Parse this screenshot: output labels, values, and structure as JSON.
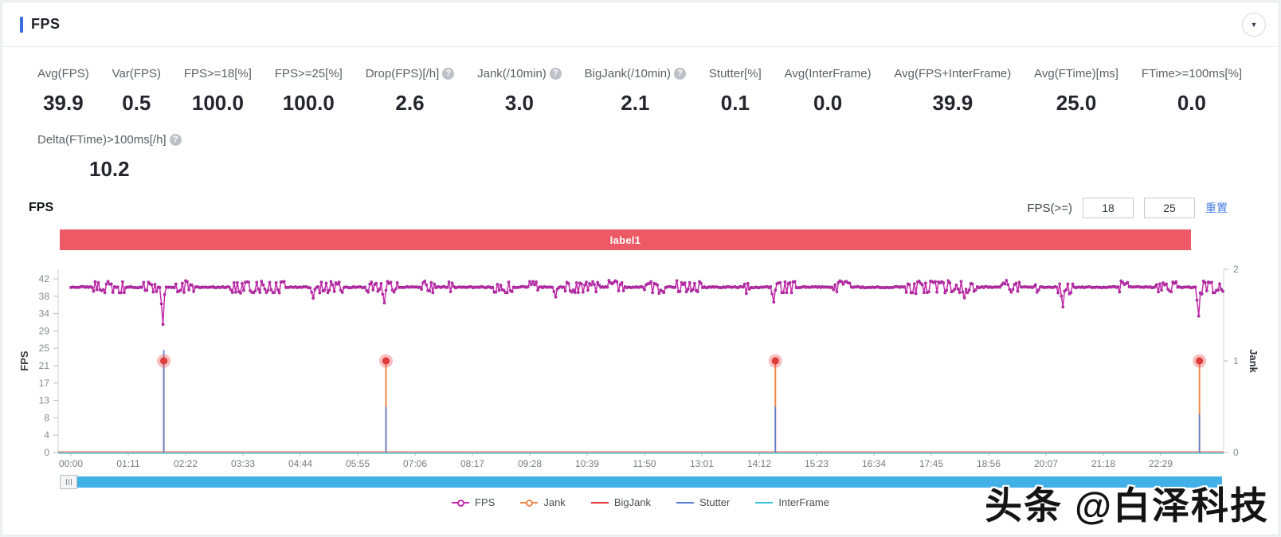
{
  "header": {
    "title": "FPS"
  },
  "colors": {
    "accent_blue": "#3a6fe0",
    "link_blue": "#4a7fe0",
    "banner_red": "#ed5a66",
    "scrollbar_blue": "#41b0e6",
    "fps_magenta": "#c52dab",
    "jank_orange": "#f0874a",
    "bigjank_red": "#e23b3b",
    "stutter_blue": "#5a7fd4",
    "interframe_cyan": "#3ec6d8"
  },
  "metrics": [
    {
      "id": "avg-fps",
      "label": "Avg(FPS)",
      "value": "39.9",
      "help": false
    },
    {
      "id": "var-fps",
      "label": "Var(FPS)",
      "value": "0.5",
      "help": false
    },
    {
      "id": "fps-ge-18",
      "label": "FPS>=18[%]",
      "value": "100.0",
      "help": false
    },
    {
      "id": "fps-ge-25",
      "label": "FPS>=25[%]",
      "value": "100.0",
      "help": false
    },
    {
      "id": "drop-fps",
      "label": "Drop(FPS)[/h]",
      "value": "2.6",
      "help": true
    },
    {
      "id": "jank",
      "label": "Jank(/10min)",
      "value": "3.0",
      "help": true
    },
    {
      "id": "bigjank",
      "label": "BigJank(/10min)",
      "value": "2.1",
      "help": true
    },
    {
      "id": "stutter",
      "label": "Stutter[%]",
      "value": "0.1",
      "help": false
    },
    {
      "id": "avg-interframe",
      "label": "Avg(InterFrame)",
      "value": "0.0",
      "help": false
    },
    {
      "id": "avg-fps-interframe",
      "label": "Avg(FPS+InterFrame)",
      "value": "39.9",
      "help": false
    },
    {
      "id": "avg-ftime",
      "label": "Avg(FTime)[ms]",
      "value": "25.0",
      "help": false
    },
    {
      "id": "ftime-ge-100ms",
      "label": "FTime>=100ms[%]",
      "value": "0.0",
      "help": false
    }
  ],
  "metrics_row2": [
    {
      "id": "delta-ftime",
      "label": "Delta(FTime)>100ms[/h]",
      "value": "10.2",
      "help": true
    }
  ],
  "chart_header": {
    "title": "FPS",
    "filter_label": "FPS(>=)",
    "threshold_low": "18",
    "threshold_high": "25",
    "reset_label": "重置"
  },
  "banner": {
    "label": "label1",
    "color": "#ed5a66"
  },
  "chart_data": {
    "type": "line",
    "title": "FPS",
    "grid": false,
    "legend_position": "bottom",
    "x_axis": {
      "ticks": [
        "00:00",
        "01:11",
        "02:22",
        "03:33",
        "04:44",
        "05:55",
        "07:06",
        "08:17",
        "09:28",
        "10:39",
        "11:50",
        "13:01",
        "14:12",
        "15:23",
        "16:34",
        "17:45",
        "18:56",
        "20:07",
        "21:18",
        "22:29"
      ],
      "tick_interval_s": 71,
      "total_s": 1427
    },
    "y_axis_left": {
      "label": "FPS",
      "ticks": [
        0,
        4,
        8,
        13,
        17,
        21,
        25,
        29,
        34,
        38,
        42
      ],
      "range": [
        0,
        43.7
      ]
    },
    "y_axis_right": {
      "label": "Jank",
      "ticks": [
        0,
        1,
        2
      ],
      "range": [
        0,
        2
      ]
    },
    "series": [
      {
        "name": "FPS",
        "type": "noisy_line",
        "axis": "left",
        "color": "#c52dab",
        "marker": "circle",
        "marker_fill": "#d332b8",
        "marker_stroke": "#8f1d89",
        "baseline_fps": 40,
        "noise_amplitude_fps": 1.6,
        "dips": [
          {
            "t_s": 113,
            "fps": 31.0
          },
          {
            "t_s": 300,
            "fps": 37.3
          },
          {
            "t_s": 388,
            "fps": 36.2
          },
          {
            "t_s": 600,
            "fps": 37.6
          },
          {
            "t_s": 870,
            "fps": 36.4
          },
          {
            "t_s": 1105,
            "fps": 37.4
          },
          {
            "t_s": 1227,
            "fps": 35.2
          },
          {
            "t_s": 1395,
            "fps": 33.0
          }
        ]
      },
      {
        "name": "Jank",
        "type": "spike",
        "axis": "right",
        "color": "#f0874a",
        "events": [
          {
            "t_s": 115,
            "value": 1
          },
          {
            "t_s": 390,
            "value": 1
          },
          {
            "t_s": 872,
            "value": 1
          },
          {
            "t_s": 1397,
            "value": 1
          }
        ]
      },
      {
        "name": "BigJank",
        "type": "point",
        "axis": "right",
        "color": "#e23b3b",
        "halo_color": "rgba(240,90,90,0.4)",
        "baseline": 0,
        "events": [
          {
            "t_s": 115,
            "value": 1
          },
          {
            "t_s": 390,
            "value": 1
          },
          {
            "t_s": 872,
            "value": 1
          },
          {
            "t_s": 1397,
            "value": 1
          }
        ]
      },
      {
        "name": "Stutter",
        "type": "spike",
        "axis": "right",
        "color": "#5a7fd4",
        "events": [
          {
            "t_s": 115,
            "value": 1.12
          },
          {
            "t_s": 390,
            "value": 0.5
          },
          {
            "t_s": 872,
            "value": 0.5
          },
          {
            "t_s": 1397,
            "value": 0.42
          }
        ]
      },
      {
        "name": "InterFrame",
        "type": "flat_line",
        "axis": "right",
        "color": "#3ec6d8",
        "baseline": 0
      }
    ],
    "legend": [
      {
        "name": "FPS",
        "color": "#c52dab",
        "dot": true
      },
      {
        "name": "Jank",
        "color": "#f0874a",
        "dot": true
      },
      {
        "name": "BigJank",
        "color": "#e23b3b",
        "dot": false
      },
      {
        "name": "Stutter",
        "color": "#5a7fd4",
        "dot": false
      },
      {
        "name": "InterFrame",
        "color": "#3ec6d8",
        "dot": false
      }
    ]
  },
  "collapse_icon": "▼",
  "watermark": {
    "text": "头条 @白泽科技"
  }
}
